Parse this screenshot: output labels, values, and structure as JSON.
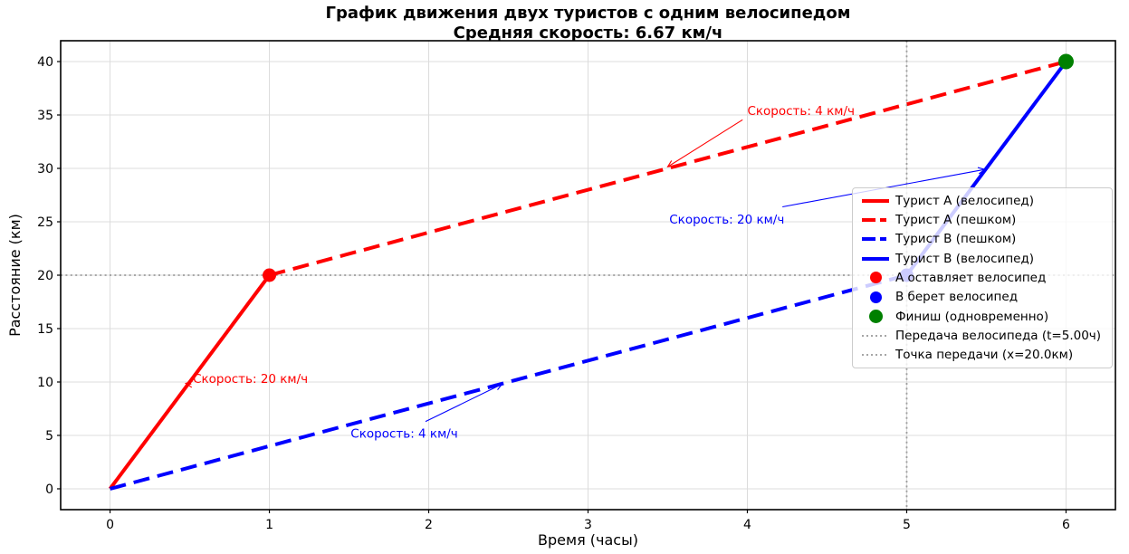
{
  "colors": {
    "red": "#ff0000",
    "blue": "#0000ff",
    "green": "#008000",
    "grid": "#dcdcdc",
    "ref": "#9c9c9c",
    "spine": "#000000",
    "legend_border": "#cccccc"
  },
  "chart_data": {
    "type": "line",
    "title": "График движения двух туристов с одним велосипедом",
    "subtitle": "Средняя скорость: 6.67 км/ч",
    "xlabel": "Время (часы)",
    "ylabel": "Расстояние (км)",
    "xlim": [
      -0.31,
      6.31
    ],
    "ylim": [
      -1.95,
      41.95
    ],
    "xticks": [
      0,
      1,
      2,
      3,
      4,
      5,
      6
    ],
    "yticks": [
      0,
      5,
      10,
      15,
      20,
      25,
      30,
      35,
      40
    ],
    "grid": true,
    "legend_location": "center right",
    "series": [
      {
        "name": "Турист А (велосипед)",
        "color": "#ff0000",
        "dash": "solid",
        "width": 4,
        "points": [
          [
            0,
            0
          ],
          [
            1,
            20
          ]
        ]
      },
      {
        "name": "Турист А (пешком)",
        "color": "#ff0000",
        "dash": "dashed",
        "width": 4,
        "points": [
          [
            1,
            20
          ],
          [
            6,
            40
          ]
        ]
      },
      {
        "name": "Турист В (пешком)",
        "color": "#0000ff",
        "dash": "dashed",
        "width": 4,
        "points": [
          [
            0,
            0
          ],
          [
            5,
            20
          ]
        ]
      },
      {
        "name": "Турист В (велосипед)",
        "color": "#0000ff",
        "dash": "solid",
        "width": 4,
        "points": [
          [
            5,
            20
          ],
          [
            6,
            40
          ]
        ]
      }
    ],
    "markers": [
      {
        "name": "А оставляет велосипед",
        "color": "#ff0000",
        "x": 1,
        "y": 20,
        "r": 7.5
      },
      {
        "name": "В берет велосипед",
        "color": "#0000ff",
        "x": 5,
        "y": 20,
        "r": 7.5
      },
      {
        "name": "Финиш (одновременно)",
        "color": "#008000",
        "x": 6,
        "y": 40,
        "r": 8.5
      }
    ],
    "reference_lines": [
      {
        "name": "Передача велосипеда (t=5.00ч)",
        "orientation": "vertical",
        "value": 5
      },
      {
        "name": "Точка передачи (x=20.0км)",
        "orientation": "horizontal",
        "value": 20
      }
    ],
    "annotations": [
      {
        "text": "Скорость: 4 км/ч",
        "color": "#ff0000",
        "text_at": [
          4.0,
          35.0
        ],
        "arrow_from": [
          3.97,
          34.55
        ],
        "arrow_to": [
          3.5,
          30.15
        ]
      },
      {
        "text": "Скорость: 20 км/ч",
        "color": "#0000ff",
        "text_at": [
          3.51,
          24.85
        ],
        "arrow_from": [
          4.22,
          26.4
        ],
        "arrow_to": [
          5.49,
          29.9
        ]
      },
      {
        "text": "Скорость: 20 км/ч",
        "color": "#ff0000",
        "text_at": [
          0.52,
          9.9
        ],
        "arrow_from": [
          0.51,
          9.8
        ],
        "arrow_to": [
          0.475,
          9.87
        ]
      },
      {
        "text": "Скорость: 4 км/ч",
        "color": "#0000ff",
        "text_at": [
          1.51,
          4.8
        ],
        "arrow_from": [
          1.98,
          6.3
        ],
        "arrow_to": [
          2.46,
          9.8
        ]
      }
    ]
  }
}
